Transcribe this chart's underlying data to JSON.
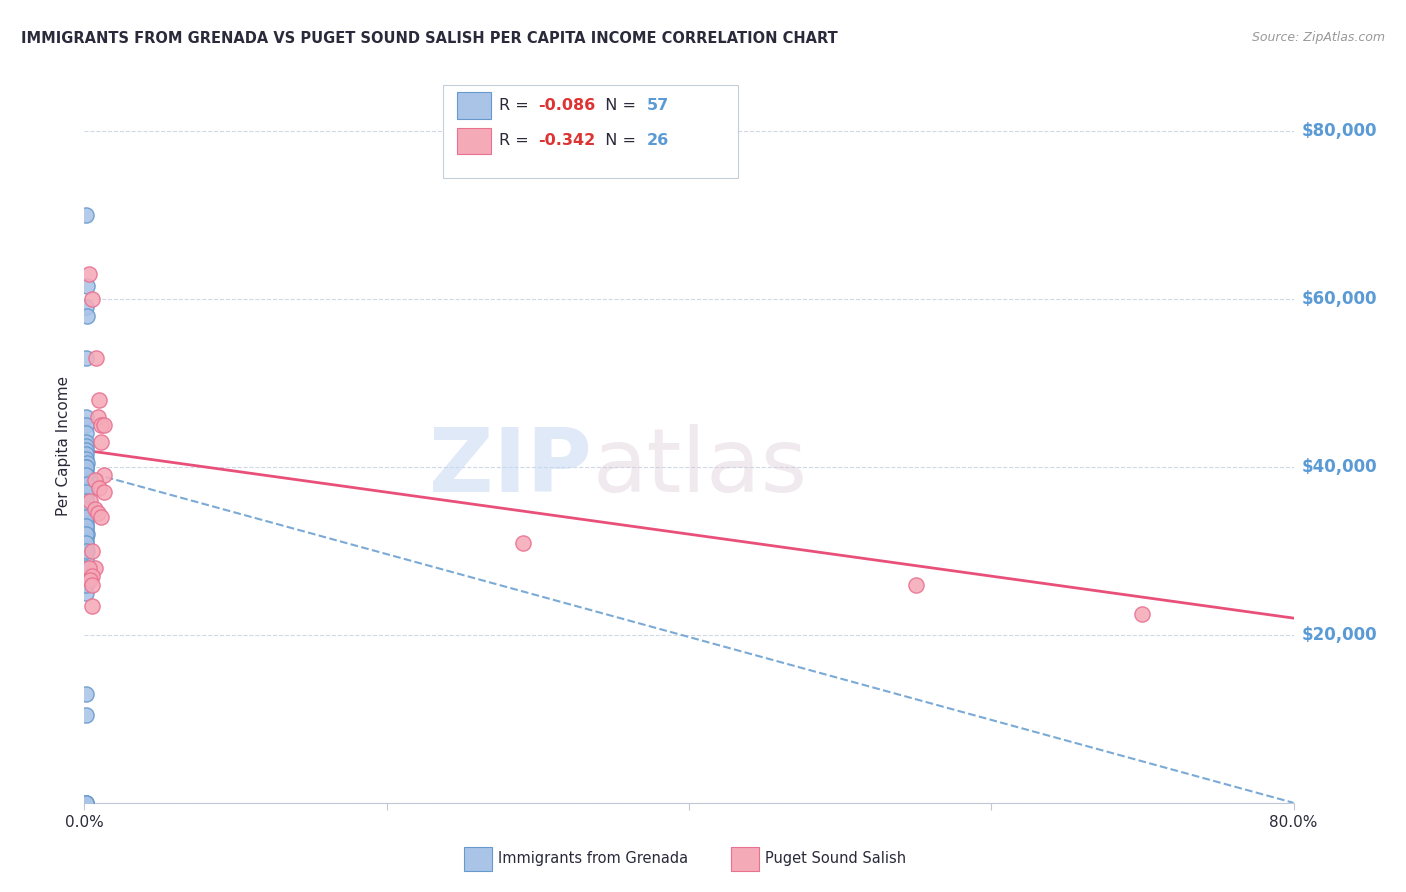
{
  "title": "IMMIGRANTS FROM GRENADA VS PUGET SOUND SALISH PER CAPITA INCOME CORRELATION CHART",
  "source": "Source: ZipAtlas.com",
  "ylabel": "Per Capita Income",
  "xlim": [
    0.0,
    0.8
  ],
  "ylim": [
    0,
    85000
  ],
  "blue_fill": "#aac4e8",
  "blue_edge": "#6699cc",
  "pink_fill": "#f5aab8",
  "pink_edge": "#e87090",
  "blue_line_color": "#7aaad5",
  "pink_line_color": "#e8507a",
  "blue_R": -0.086,
  "blue_N": 57,
  "pink_R": -0.342,
  "pink_N": 26,
  "legend_label_blue": "Immigrants from Grenada",
  "legend_label_pink": "Puget Sound Salish",
  "right_ytick_color": "#5b9bd5",
  "text_color": "#2a2a3a",
  "note_color": "#777788",
  "blue_x": [
    0.001,
    0.002,
    0.001,
    0.002,
    0.001,
    0.001,
    0.001,
    0.001,
    0.001,
    0.001,
    0.001,
    0.001,
    0.001,
    0.002,
    0.001,
    0.001,
    0.001,
    0.001,
    0.001,
    0.001,
    0.002,
    0.001,
    0.001,
    0.001,
    0.001,
    0.001,
    0.002,
    0.001,
    0.001,
    0.001,
    0.002,
    0.001,
    0.001,
    0.001,
    0.002,
    0.003,
    0.001,
    0.001,
    0.002,
    0.001,
    0.001,
    0.001,
    0.001,
    0.001,
    0.001,
    0.001,
    0.001,
    0.001,
    0.001,
    0.001,
    0.001,
    0.001,
    0.001,
    0.001,
    0.001,
    0.001,
    0.001
  ],
  "blue_y": [
    70000,
    61500,
    59000,
    58000,
    53000,
    46000,
    45000,
    44000,
    43000,
    42500,
    42000,
    41500,
    41000,
    40500,
    40000,
    39500,
    39000,
    38500,
    38000,
    37500,
    37000,
    36500,
    36000,
    35500,
    35000,
    34500,
    34000,
    33500,
    33000,
    32500,
    32000,
    31500,
    31000,
    30500,
    30000,
    38500,
    40000,
    39000,
    38000,
    37000,
    36000,
    35000,
    34000,
    33000,
    32000,
    31000,
    29000,
    27000,
    25000,
    26000,
    28000,
    30000,
    13000,
    10500,
    0,
    0,
    0
  ],
  "pink_x": [
    0.003,
    0.005,
    0.008,
    0.01,
    0.009,
    0.011,
    0.013,
    0.011,
    0.013,
    0.007,
    0.01,
    0.013,
    0.004,
    0.007,
    0.009,
    0.011,
    0.005,
    0.007,
    0.003,
    0.005,
    0.004,
    0.005,
    0.005,
    0.29,
    0.55,
    0.7
  ],
  "pink_y": [
    63000,
    60000,
    53000,
    48000,
    46000,
    45000,
    45000,
    43000,
    39000,
    38500,
    37500,
    37000,
    36000,
    35000,
    34500,
    34000,
    30000,
    28000,
    28000,
    27000,
    26500,
    26000,
    23500,
    31000,
    26000,
    22500
  ],
  "blue_trendline_x": [
    0.0,
    0.8
  ],
  "blue_trendline_y": [
    39500,
    0
  ],
  "pink_trendline_x": [
    0.0,
    0.8
  ],
  "pink_trendline_y": [
    42000,
    22000
  ]
}
